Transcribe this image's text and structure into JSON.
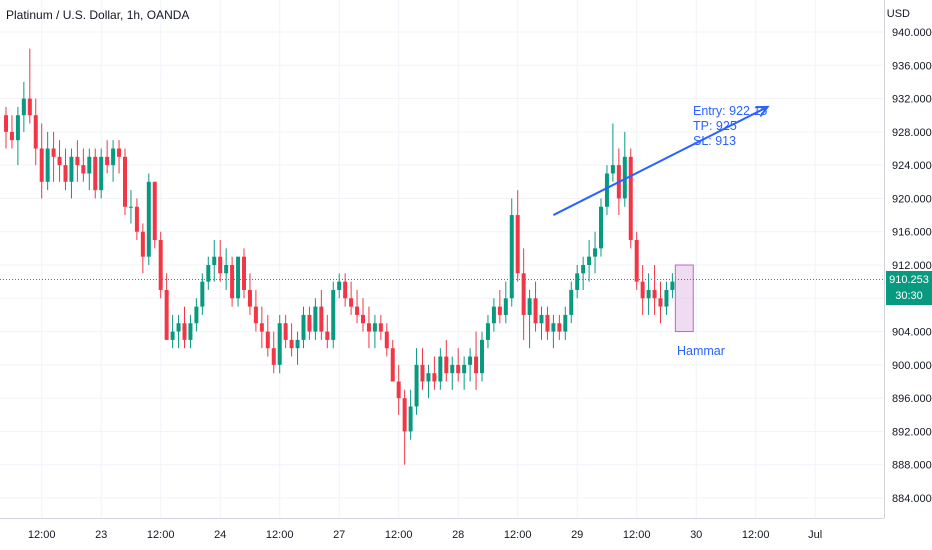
{
  "header": {
    "title": "Platinum / U.S. Dollar, 1h, OANDA",
    "currency": "USD"
  },
  "annotations": {
    "entry": "Entry: 922.15",
    "tp": "TP: 925",
    "sl": "SL: 913",
    "hammar": "Hammar"
  },
  "price_badge": {
    "price": "910.253",
    "countdown": "30:30"
  },
  "colors": {
    "up": "#089981",
    "down": "#f23645",
    "line": "#2962ff",
    "hammar_box": "#e1bee7",
    "current_price_line": "#089981"
  },
  "chart_data": {
    "type": "candlestick",
    "title": "Platinum / U.S. Dollar, 1h, OANDA",
    "ylim": [
      882,
      941
    ],
    "yticks": [
      "940.000",
      "936.000",
      "932.000",
      "928.000",
      "924.000",
      "920.000",
      "916.000",
      "912.000",
      "908.000",
      "904.000",
      "900.000",
      "896.000",
      "892.000",
      "888.000",
      "884.000"
    ],
    "ytick_values": [
      940,
      936,
      932,
      928,
      924,
      920,
      916,
      912,
      908,
      904,
      900,
      896,
      892,
      888,
      884
    ],
    "xticks": [
      "12:00",
      "23",
      "12:00",
      "24",
      "12:00",
      "27",
      "12:00",
      "28",
      "12:00",
      "29",
      "12:00",
      "30",
      "12:00",
      "Jul"
    ],
    "xtick_index": [
      6,
      16,
      26,
      36,
      46,
      56,
      66,
      76,
      86,
      96,
      106,
      116,
      126,
      136
    ],
    "current_price": 910.253,
    "grid": true,
    "candles": [
      [
        930,
        931,
        926,
        928
      ],
      [
        928,
        930,
        926,
        927
      ],
      [
        927,
        931,
        924,
        930
      ],
      [
        930,
        934,
        928,
        932
      ],
      [
        932,
        938,
        929,
        930
      ],
      [
        930,
        932,
        924,
        926
      ],
      [
        926,
        929,
        920,
        922
      ],
      [
        922,
        928,
        921,
        926
      ],
      [
        926,
        928,
        922,
        925
      ],
      [
        925,
        927,
        922,
        924
      ],
      [
        924,
        926,
        921,
        922
      ],
      [
        922,
        926,
        920,
        925
      ],
      [
        925,
        927,
        922,
        924
      ],
      [
        924,
        926,
        922,
        923
      ],
      [
        923,
        926,
        921,
        925
      ],
      [
        925,
        926,
        920,
        921
      ],
      [
        921,
        926,
        920,
        925
      ],
      [
        925,
        927,
        923,
        924
      ],
      [
        924,
        927,
        922,
        926
      ],
      [
        926,
        927,
        923,
        925
      ],
      [
        925,
        926,
        918,
        919
      ],
      [
        919,
        921,
        917,
        919
      ],
      [
        919,
        920,
        915,
        916
      ],
      [
        916,
        917,
        911,
        913
      ],
      [
        913,
        923,
        912,
        922
      ],
      [
        922,
        922,
        914,
        915
      ],
      [
        915,
        916,
        908,
        909
      ],
      [
        909,
        911,
        903,
        903
      ],
      [
        903,
        906,
        902,
        904
      ],
      [
        904,
        906,
        902,
        905
      ],
      [
        905,
        907,
        902,
        903
      ],
      [
        903,
        906,
        902,
        905
      ],
      [
        905,
        908,
        904,
        907
      ],
      [
        907,
        911,
        906,
        910
      ],
      [
        910,
        913,
        909,
        912
      ],
      [
        912,
        915,
        910,
        913
      ],
      [
        913,
        915,
        910,
        911
      ],
      [
        911,
        914,
        909,
        912
      ],
      [
        912,
        913,
        907,
        908
      ],
      [
        908,
        913,
        907,
        913
      ],
      [
        913,
        914,
        908,
        909
      ],
      [
        909,
        911,
        906,
        907
      ],
      [
        907,
        909,
        904,
        905
      ],
      [
        905,
        907,
        902,
        904
      ],
      [
        904,
        906,
        901,
        902
      ],
      [
        902,
        904,
        899,
        900
      ],
      [
        900,
        906,
        899,
        905
      ],
      [
        905,
        906,
        902,
        903
      ],
      [
        903,
        905,
        901,
        902
      ],
      [
        902,
        904,
        900,
        903
      ],
      [
        903,
        907,
        902,
        906
      ],
      [
        906,
        907,
        903,
        904
      ],
      [
        904,
        908,
        903,
        907
      ],
      [
        907,
        909,
        903,
        904
      ],
      [
        904,
        906,
        902,
        903
      ],
      [
        903,
        910,
        902,
        909
      ],
      [
        909,
        911,
        908,
        910
      ],
      [
        910,
        911,
        907,
        908
      ],
      [
        908,
        910,
        906,
        907
      ],
      [
        907,
        909,
        905,
        906
      ],
      [
        906,
        908,
        904,
        905
      ],
      [
        905,
        907,
        902,
        904
      ],
      [
        904,
        906,
        902,
        905
      ],
      [
        905,
        906,
        903,
        904
      ],
      [
        904,
        905,
        901,
        902
      ],
      [
        902,
        903,
        898,
        898
      ],
      [
        898,
        900,
        894,
        896
      ],
      [
        896,
        897,
        888,
        892
      ],
      [
        892,
        897,
        891,
        895
      ],
      [
        895,
        902,
        894,
        900
      ],
      [
        900,
        902,
        897,
        898
      ],
      [
        898,
        900,
        896,
        899
      ],
      [
        899,
        901,
        897,
        898
      ],
      [
        898,
        902,
        897,
        901
      ],
      [
        901,
        903,
        898,
        899
      ],
      [
        899,
        901,
        897,
        900
      ],
      [
        900,
        902,
        898,
        899
      ],
      [
        899,
        901,
        897,
        900
      ],
      [
        900,
        902,
        898,
        901
      ],
      [
        901,
        904,
        897,
        899
      ],
      [
        899,
        904,
        898,
        903
      ],
      [
        903,
        906,
        902,
        905
      ],
      [
        905,
        908,
        904,
        907
      ],
      [
        907,
        909,
        905,
        906
      ],
      [
        906,
        910,
        905,
        908
      ],
      [
        908,
        920,
        907,
        918
      ],
      [
        918,
        921,
        910,
        911
      ],
      [
        911,
        914,
        903,
        906
      ],
      [
        906,
        909,
        902,
        908
      ],
      [
        908,
        910,
        904,
        905
      ],
      [
        905,
        907,
        903,
        906
      ],
      [
        906,
        907,
        903,
        904
      ],
      [
        904,
        906,
        902,
        905
      ],
      [
        905,
        906,
        903,
        904
      ],
      [
        904,
        907,
        903,
        906
      ],
      [
        906,
        910,
        905,
        909
      ],
      [
        909,
        912,
        908,
        911
      ],
      [
        911,
        913,
        909,
        912
      ],
      [
        912,
        915,
        910,
        913
      ],
      [
        913,
        916,
        911,
        914
      ],
      [
        914,
        920,
        913,
        919
      ],
      [
        919,
        924,
        918,
        923
      ],
      [
        923,
        929,
        922,
        924
      ],
      [
        924,
        926,
        918,
        920
      ],
      [
        920,
        928,
        919,
        925
      ],
      [
        925,
        926,
        914,
        915
      ],
      [
        915,
        916,
        909,
        910
      ],
      [
        910,
        912,
        906,
        908
      ],
      [
        908,
        911,
        906,
        909
      ],
      [
        909,
        912,
        906,
        908
      ],
      [
        908,
        910,
        905,
        907
      ],
      [
        907,
        910,
        906,
        909
      ],
      [
        909,
        911,
        908,
        910
      ]
    ],
    "trend_arrow": {
      "from": {
        "i": 92,
        "p": 918
      },
      "to": {
        "i": 128,
        "p": 931
      }
    },
    "hammar_box": {
      "from_i": 113,
      "to_i": 115,
      "top": 912,
      "bottom": 904
    }
  }
}
